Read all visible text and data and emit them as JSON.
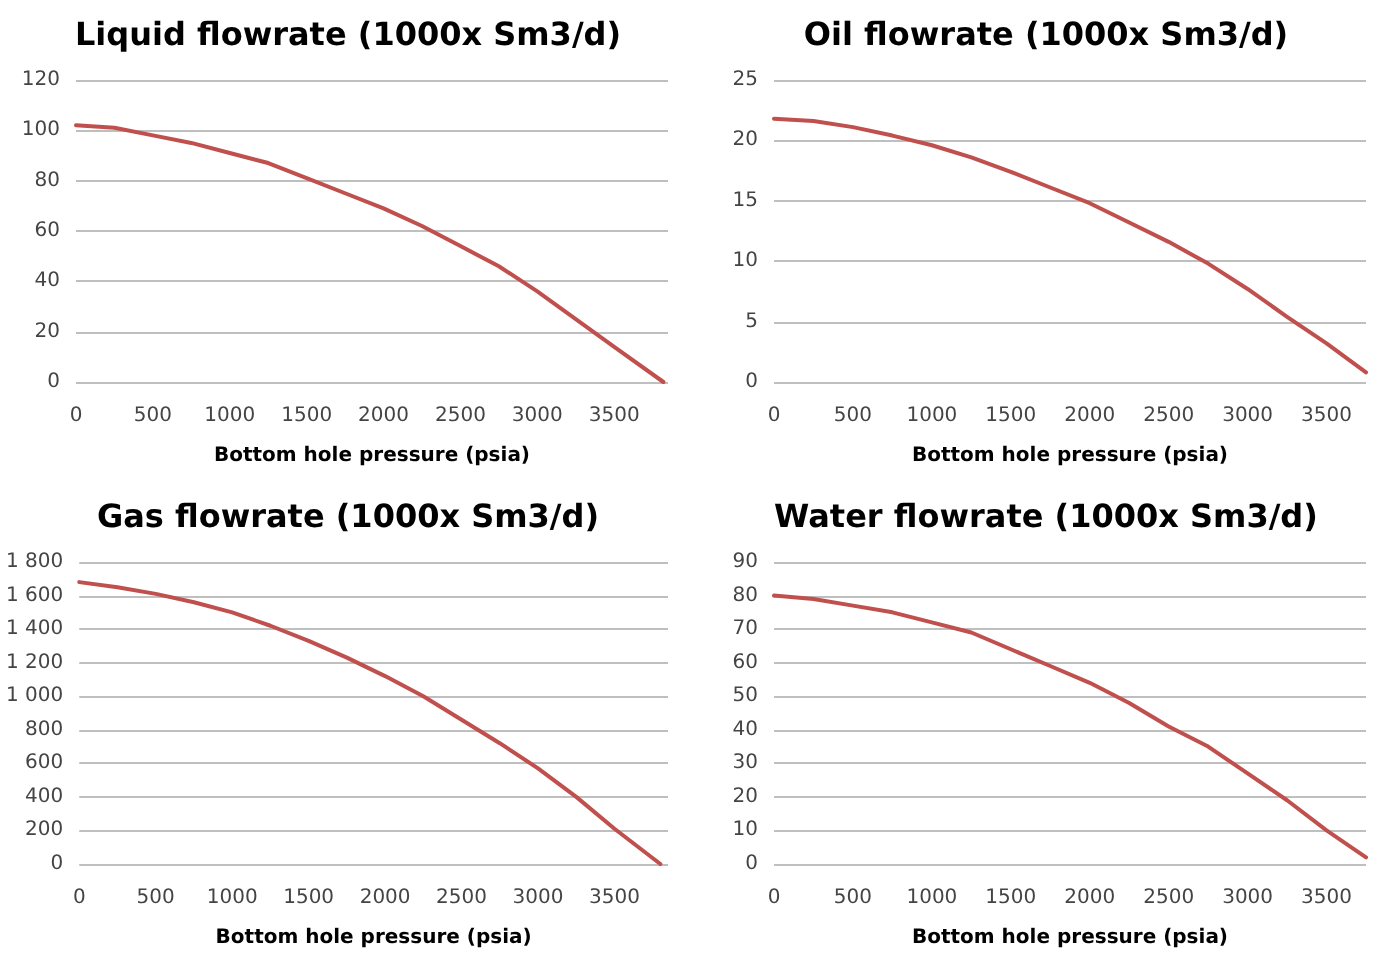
{
  "chart_data": [
    {
      "type": "line",
      "title": "Liquid flowrate (1000x Sm3/d)",
      "xlabel": "Bottom hole pressure (psia)",
      "color": "#c0504d",
      "marker": "none",
      "grid": "y",
      "xlim": [
        0,
        3850
      ],
      "xticks": [
        0,
        500,
        1000,
        1500,
        2000,
        2500,
        3000,
        3500
      ],
      "ylim": [
        0,
        120
      ],
      "yticks": [
        0,
        20,
        40,
        60,
        80,
        100,
        120
      ],
      "x": [
        0,
        250,
        500,
        750,
        1000,
        1250,
        1500,
        1750,
        2000,
        2250,
        2500,
        2750,
        3000,
        3250,
        3500,
        3820
      ],
      "values": [
        102,
        101,
        98,
        95,
        91,
        87,
        81,
        75,
        69,
        62,
        54,
        46,
        36,
        25,
        14,
        0
      ]
    },
    {
      "type": "line",
      "title": "Oil flowrate (1000x Sm3/d)",
      "xlabel": "Bottom hole pressure (psia)",
      "color": "#c0504d",
      "marker": "none",
      "grid": "y",
      "xlim": [
        0,
        3750
      ],
      "xticks": [
        0,
        500,
        1000,
        1500,
        2000,
        2500,
        3000,
        3500
      ],
      "ylim": [
        0,
        25
      ],
      "yticks": [
        0,
        5,
        10,
        15,
        20,
        25
      ],
      "x": [
        0,
        250,
        500,
        750,
        1000,
        1250,
        1500,
        1750,
        2000,
        2250,
        2500,
        2750,
        3000,
        3250,
        3500,
        3750
      ],
      "values": [
        21.8,
        21.6,
        21.1,
        20.4,
        19.6,
        18.6,
        17.4,
        16.1,
        14.8,
        13.2,
        11.6,
        9.8,
        7.7,
        5.4,
        3.2,
        0.8
      ]
    },
    {
      "type": "line",
      "title": "Gas flowrate (1000x Sm3/d)",
      "xlabel": "Bottom hole pressure (psia)",
      "color": "#c0504d",
      "marker": "none",
      "grid": "y",
      "xlim": [
        0,
        3850
      ],
      "xticks": [
        0,
        500,
        1000,
        1500,
        2000,
        2500,
        3000,
        3500
      ],
      "ylim": [
        0,
        1800
      ],
      "yticks": [
        0,
        200,
        400,
        600,
        800,
        {
          "value": 1000,
          "label": "1 000"
        },
        {
          "value": 1200,
          "label": "1 200"
        },
        {
          "value": 1400,
          "label": "1 400"
        },
        {
          "value": 1600,
          "label": "1 600"
        },
        {
          "value": 1800,
          "label": "1 800"
        }
      ],
      "x": [
        0,
        250,
        500,
        750,
        1000,
        1250,
        1500,
        1750,
        2000,
        2250,
        2500,
        2750,
        3000,
        3250,
        3500,
        3800
      ],
      "values": [
        1680,
        1650,
        1610,
        1560,
        1500,
        1420,
        1330,
        1230,
        1120,
        1000,
        860,
        720,
        570,
        400,
        210,
        0
      ]
    },
    {
      "type": "line",
      "title": "Water flowrate (1000x Sm3/d)",
      "xlabel": "Bottom hole pressure (psia)",
      "color": "#c0504d",
      "marker": "none",
      "grid": "y",
      "xlim": [
        0,
        3750
      ],
      "xticks": [
        0,
        500,
        1000,
        1500,
        2000,
        2500,
        3000,
        3500
      ],
      "ylim": [
        0,
        90
      ],
      "yticks": [
        0,
        10,
        20,
        30,
        40,
        50,
        60,
        70,
        80,
        90
      ],
      "x": [
        0,
        250,
        500,
        750,
        1000,
        1250,
        1500,
        1750,
        2000,
        2250,
        2500,
        2750,
        3000,
        3250,
        3500,
        3750
      ],
      "values": [
        80,
        79,
        77,
        75,
        72,
        69,
        64,
        59,
        54,
        48,
        41,
        35,
        27,
        19,
        10,
        2
      ]
    }
  ]
}
